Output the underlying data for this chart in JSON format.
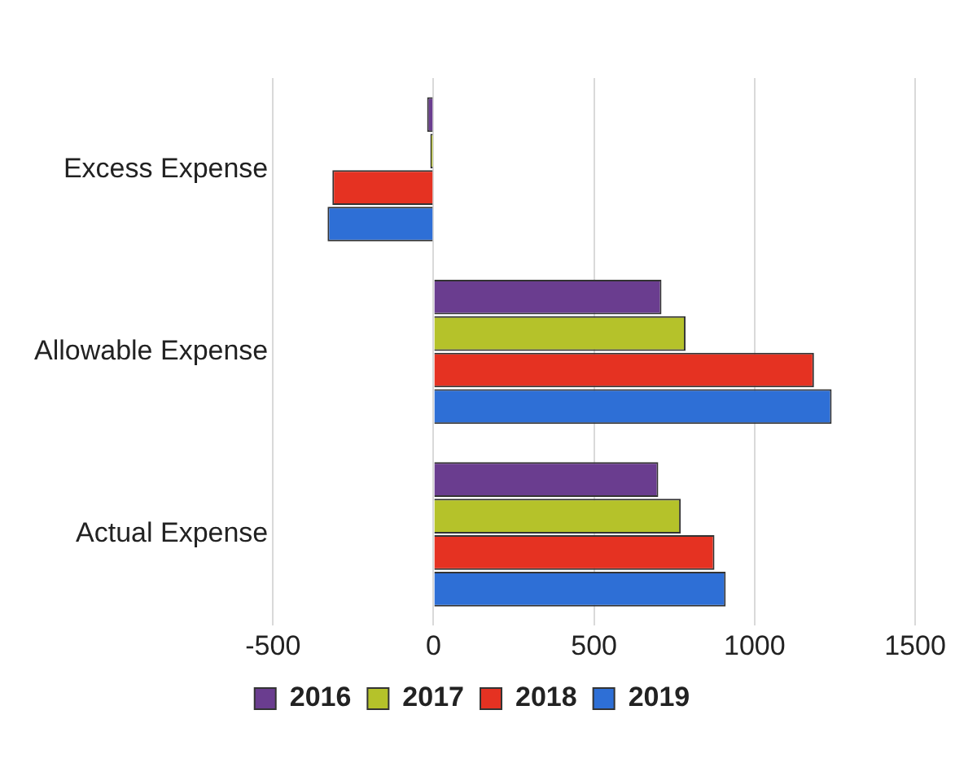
{
  "chart_data": {
    "type": "bar",
    "orientation": "horizontal",
    "categories": [
      "Excess Expense",
      "Allowable Expense",
      "Actual Expense"
    ],
    "series": [
      {
        "name": "2016",
        "color": "#6a3d8f",
        "values": [
          -20,
          710,
          700
        ]
      },
      {
        "name": "2017",
        "color": "#b5c22a",
        "values": [
          -10,
          785,
          770
        ]
      },
      {
        "name": "2018",
        "color": "#e53222",
        "values": [
          -315,
          1185,
          875
        ]
      },
      {
        "name": "2019",
        "color": "#2e6fd6",
        "values": [
          -330,
          1240,
          910
        ]
      }
    ],
    "xlim": [
      -500,
      1500
    ],
    "xticks": [
      -500,
      0,
      500,
      1000,
      1500
    ],
    "grid": "x",
    "legend": "bottom"
  }
}
